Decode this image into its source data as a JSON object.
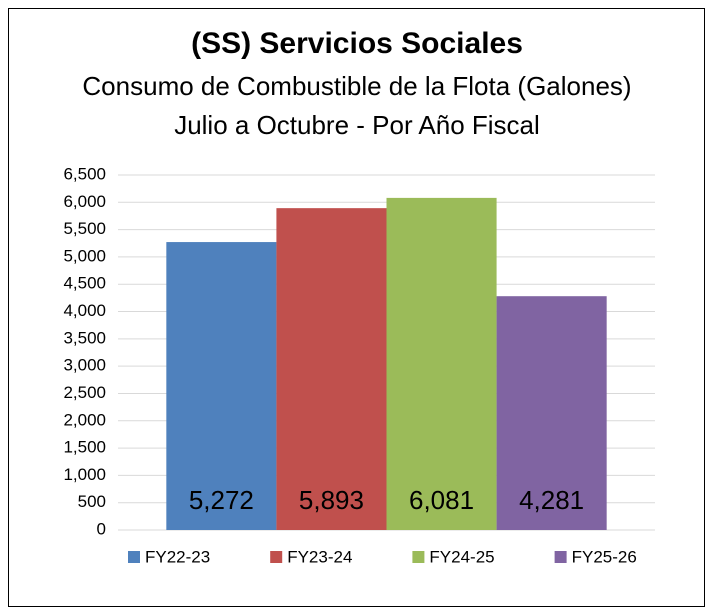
{
  "chart_data": {
    "type": "bar",
    "title": "(SS) Servicios Sociales",
    "subtitle": [
      "Consumo de Combustible de la Flota (Galones)",
      "Julio a Octubre - Por Año Fiscal"
    ],
    "categories": [
      null
    ],
    "series": [
      {
        "name": "FY22-23",
        "color": "#4f81bd",
        "values": [
          5272
        ],
        "value_labels": [
          "5,272"
        ]
      },
      {
        "name": "FY23-24",
        "color": "#c0504d",
        "values": [
          5893
        ],
        "value_labels": [
          "5,893"
        ]
      },
      {
        "name": "FY24-25",
        "color": "#9bbb59",
        "values": [
          6081
        ],
        "value_labels": [
          "6,081"
        ]
      },
      {
        "name": "FY25-26",
        "color": "#8064a2",
        "values": [
          4281
        ],
        "value_labels": [
          "4,281"
        ]
      }
    ],
    "ylim": [
      0,
      6500
    ],
    "yticks": [
      0,
      500,
      {
        "value": 1000,
        "label": "1,000"
      },
      {
        "value": 1500,
        "label": "1,500"
      },
      {
        "value": 2000,
        "label": "2,000"
      },
      {
        "value": 2500,
        "label": "2,500"
      },
      {
        "value": 3000,
        "label": "3,000"
      },
      {
        "value": 3500,
        "label": "3,500"
      },
      {
        "value": 4000,
        "label": "4,000"
      },
      {
        "value": 4500,
        "label": "4,500"
      },
      {
        "value": 5000,
        "label": "5,000"
      },
      {
        "value": 5500,
        "label": "5,500"
      },
      {
        "value": 6000,
        "label": "6,000"
      },
      {
        "value": 6500,
        "label": "6,500"
      }
    ],
    "grid": true,
    "legend": "bottom"
  }
}
